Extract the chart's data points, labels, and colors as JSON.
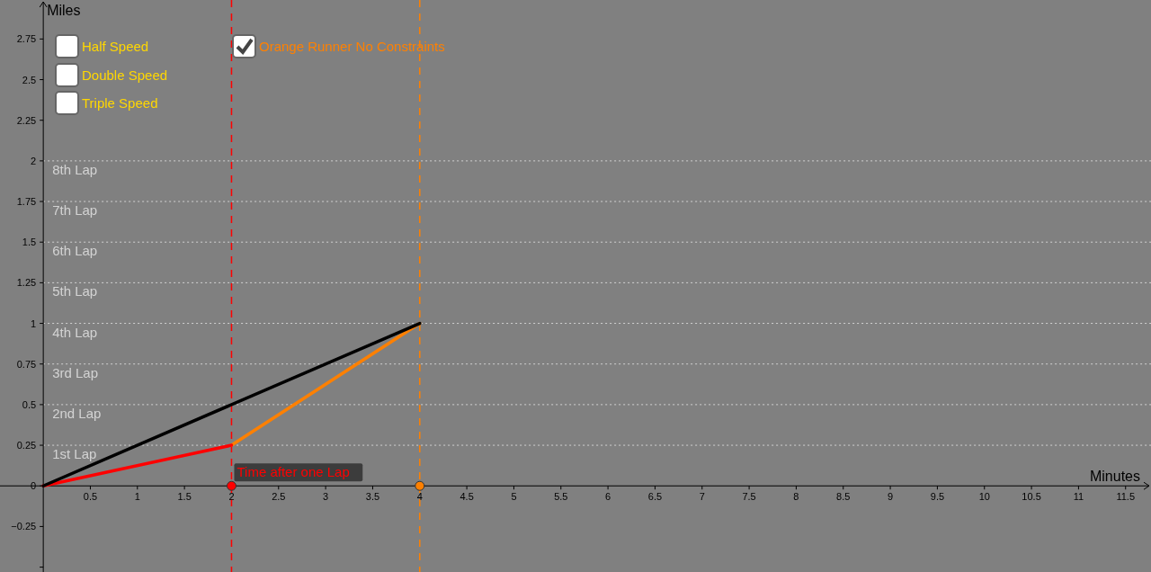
{
  "chart_data": {
    "type": "line",
    "xlabel": "Minutes",
    "ylabel": "Miles",
    "xlim": [
      -0.46,
      11.77
    ],
    "ylim": [
      -0.53,
      2.99
    ],
    "xticks": [
      0.5,
      1,
      1.5,
      2,
      2.5,
      3,
      3.5,
      4,
      4.5,
      5,
      5.5,
      6,
      6.5,
      7,
      7.5,
      8,
      8.5,
      9,
      9.5,
      10,
      10.5,
      11,
      11.5
    ],
    "yticks": [
      {
        "value": -0.5,
        "label": null
      },
      {
        "value": -0.25,
        "label": "−0.25"
      },
      0,
      0.25,
      0.5,
      0.75,
      1,
      1.25,
      1.5,
      1.75,
      2,
      2.25,
      2.5,
      2.75
    ],
    "line_style": "solid",
    "marker": "none",
    "grid": false,
    "series": [
      {
        "color": "#000000",
        "x": [
          0,
          4
        ],
        "values": [
          0,
          1
        ]
      },
      {
        "color": "#ff0000",
        "x": [
          0,
          2
        ],
        "values": [
          0,
          0.25
        ]
      },
      {
        "color": "#ff8000",
        "x": [
          2,
          4
        ],
        "values": [
          0.25,
          1
        ]
      },
      {
        "type": "scatter",
        "marker": "circle",
        "color": "#ff0000",
        "x": [
          2
        ],
        "values": [
          0
        ]
      },
      {
        "type": "scatter",
        "marker": "circle",
        "color": "#ff8000",
        "x": [
          4
        ],
        "values": [
          0
        ]
      }
    ],
    "ref_lines": [
      {
        "axis": "y",
        "value": 0.25,
        "label": "1st Lap",
        "color": "#d3d3d3",
        "line_style": "dotted"
      },
      {
        "axis": "y",
        "value": 0.5,
        "label": "2nd Lap",
        "color": "#d3d3d3",
        "line_style": "dotted"
      },
      {
        "axis": "y",
        "value": 0.75,
        "label": "3rd Lap",
        "color": "#d3d3d3",
        "line_style": "dotted"
      },
      {
        "axis": "y",
        "value": 1,
        "label": "4th Lap",
        "color": "#d3d3d3",
        "line_style": "dotted"
      },
      {
        "axis": "y",
        "value": 1.25,
        "label": "5th Lap",
        "color": "#d3d3d3",
        "line_style": "dotted"
      },
      {
        "axis": "y",
        "value": 1.5,
        "label": "6th Lap",
        "color": "#d3d3d3",
        "line_style": "dotted"
      },
      {
        "axis": "y",
        "value": 1.75,
        "label": "7th Lap",
        "color": "#d3d3d3",
        "line_style": "dotted"
      },
      {
        "axis": "y",
        "value": 2,
        "label": "8th Lap",
        "color": "#d3d3d3",
        "line_style": "dotted"
      },
      {
        "axis": "x",
        "value": 2,
        "label": "Time after one Lap",
        "color": "#ff0000",
        "line_style": "dashed"
      },
      {
        "axis": "x",
        "value": 4,
        "label": null,
        "color": "#ff8000",
        "line_style": "dashed"
      }
    ],
    "annotations": [
      "Half Speed",
      "Double Speed",
      "Triple Speed",
      "Orange Runner No Constraints"
    ]
  }
}
